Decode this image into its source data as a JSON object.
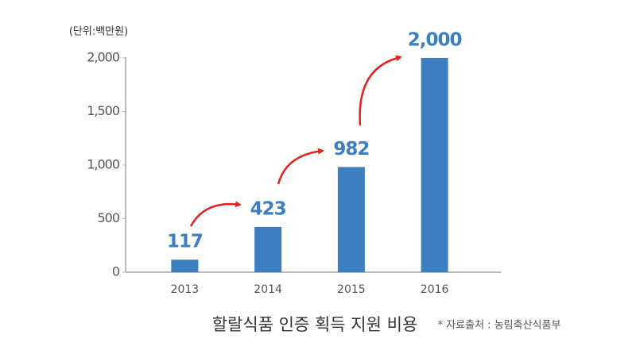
{
  "chart_data": {
    "type": "bar",
    "title": "할랄식품 인증 획득 지원 비용",
    "unit_label": "(단위:백만원)",
    "source": "* 자료출처 : 농림축산식품부",
    "categories": [
      "2013",
      "2014",
      "2015",
      "2016"
    ],
    "values": [
      117,
      423,
      982,
      2000
    ],
    "value_labels": [
      "117",
      "423",
      "982",
      "2,000"
    ],
    "color": "#3d7fc1",
    "ylim": [
      0,
      2000
    ],
    "yticks": [
      0,
      500,
      {
        "value": 1000,
        "label": "1,000"
      },
      {
        "value": 1500,
        "label": "1,500"
      },
      {
        "value": 2000,
        "label": "2,000"
      }
    ],
    "grid": false
  }
}
